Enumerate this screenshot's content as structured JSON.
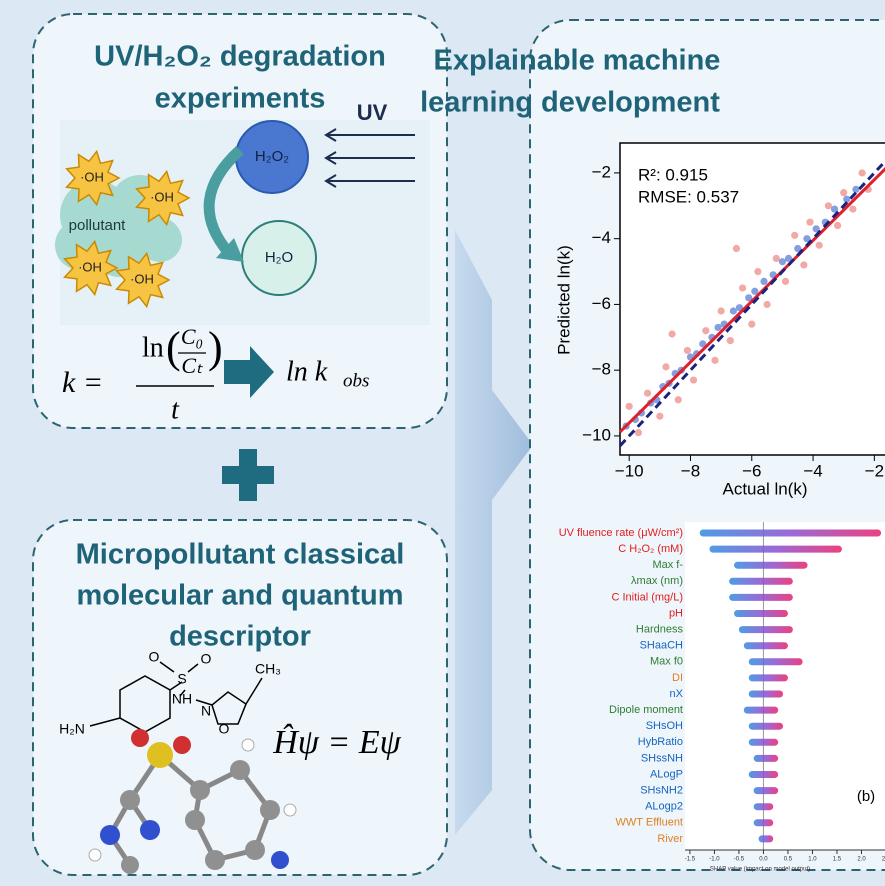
{
  "panel_1": {
    "title": [
      "UV/H₂O₂ degradation",
      "experiments"
    ],
    "illustration": {
      "uv": "UV",
      "h2o2": "H₂O₂",
      "h2o": "H₂O",
      "pollutant": "pollutant",
      "radicals": [
        "·OH",
        "·OH",
        "·OH",
        "·OH"
      ]
    },
    "equation": {
      "lhs": "k =",
      "ln": "ln",
      "numerator": "C₀",
      "denominator": "Cₜ",
      "time": "t",
      "result": "ln k",
      "result_sub": "obs"
    }
  },
  "panel_2": {
    "title": [
      "Micropollutant classical",
      "molecular and quantum",
      "descriptor"
    ],
    "molecule_labels": [
      "O",
      "S",
      "O",
      "NH",
      "N",
      "O",
      "CH₃",
      "H₂N"
    ],
    "equation": "Ĥψ = Eψ"
  },
  "panel_3": {
    "title": [
      "Explainable machine",
      "learning development"
    ]
  },
  "chart_data": [
    {
      "type": "scatter",
      "annotations": [
        "R²: 0.915",
        "RMSE: 0.537"
      ],
      "x_label": "Actual ln(k)",
      "y_label": "Predicted ln(k)",
      "xlim": [
        -10.3,
        -1.0
      ],
      "ylim": [
        -10.58,
        -1.09
      ],
      "xticks": [
        {
          "value": -10,
          "label": "−10"
        },
        {
          "value": -8,
          "label": "−8"
        },
        {
          "value": -6,
          "label": "−6"
        },
        {
          "value": -4,
          "label": "−4"
        },
        {
          "value": -2,
          "label": "−2"
        }
      ],
      "yticks": [
        {
          "value": -2,
          "label": "−2"
        },
        {
          "value": -4,
          "label": "−4"
        },
        {
          "value": -6,
          "label": "−6"
        },
        {
          "value": -8,
          "label": "−8"
        },
        {
          "value": -10,
          "label": "−10"
        }
      ],
      "series": [
        {
          "color": "#5b7fd6",
          "x": [
            -10.1,
            -9.8,
            -9.6,
            -9.3,
            -9.1,
            -8.9,
            -8.7,
            -8.5,
            -8.3,
            -8.0,
            -7.8,
            -7.6,
            -7.3,
            -7.1,
            -6.9,
            -6.6,
            -6.4,
            -6.1,
            -5.9,
            -5.6,
            -5.3,
            -5.0,
            -4.8,
            -4.5,
            -4.2,
            -3.9,
            -3.6,
            -3.3,
            -2.9,
            -2.6
          ],
          "y": [
            -9.7,
            -9.5,
            -9.3,
            -9.0,
            -8.9,
            -8.5,
            -8.4,
            -8.1,
            -8.0,
            -7.6,
            -7.5,
            -7.2,
            -7.0,
            -6.7,
            -6.6,
            -6.2,
            -6.1,
            -5.8,
            -5.6,
            -5.3,
            -5.1,
            -4.7,
            -4.6,
            -4.3,
            -4.0,
            -3.7,
            -3.5,
            -3.1,
            -2.8,
            -2.5
          ]
        },
        {
          "color": "#ec8c88",
          "x": [
            -10.0,
            -9.7,
            -9.4,
            -9.0,
            -8.8,
            -8.4,
            -8.1,
            -7.9,
            -7.5,
            -7.2,
            -7.0,
            -6.7,
            -6.3,
            -6.0,
            -5.8,
            -5.5,
            -5.2,
            -4.9,
            -4.6,
            -4.3,
            -4.1,
            -3.8,
            -3.5,
            -3.2,
            -3.0,
            -2.7,
            -2.4,
            -2.2,
            -8.6,
            -6.5
          ],
          "y": [
            -9.1,
            -9.9,
            -8.7,
            -9.4,
            -7.9,
            -8.9,
            -7.4,
            -8.3,
            -6.8,
            -7.7,
            -6.2,
            -7.1,
            -5.5,
            -6.6,
            -5.0,
            -6.0,
            -4.6,
            -5.3,
            -3.9,
            -4.8,
            -3.5,
            -4.2,
            -3.0,
            -3.6,
            -2.6,
            -3.1,
            -2.0,
            -2.5,
            -6.9,
            -4.3
          ]
        }
      ],
      "fit_line": {
        "color": "#e0202a",
        "x": [
          -10.3,
          -1.0
        ],
        "y": [
          -9.88,
          -1.28
        ]
      },
      "identity_line": {
        "color": "#1a237e",
        "x": [
          -10.3,
          -1.0
        ],
        "y": [
          -10.3,
          -1.0
        ]
      }
    },
    {
      "type": "beeswarm",
      "x_label": "SHAP value (impact on model output)",
      "annotation": "(b)",
      "xlim": [
        -1.6,
        2.5
      ],
      "xticks": [
        -1.5,
        {
          "value": -1,
          "label": "-1.0"
        },
        -0.5,
        {
          "value": 0,
          "label": "0.0"
        },
        0.5,
        {
          "value": 1,
          "label": "1.0"
        },
        1.5,
        {
          "value": 2,
          "label": "2.0"
        },
        2.5
      ],
      "features": [
        "UV fluence rate (μW/cm²)",
        "C H₂O₂ (mM)",
        "Max f-",
        "λmax (nm)",
        "C Initial (mg/L)",
        "pH",
        "Hardness",
        "SHaaCH",
        "Max f0",
        "DI",
        "nX",
        "Dipole moment",
        "SHsOH",
        "HybRatio",
        "SHssNH",
        "ALogP",
        "SHsNH2",
        "ALogp2",
        "WWT Effluent",
        "River"
      ],
      "feature_colors": [
        "#e02020",
        "#e02020",
        "#2e7d32",
        "#2e7d32",
        "#e02020",
        "#e02020",
        "#2e7d32",
        "#1565c0",
        "#2e7d32",
        "#e08020",
        "#1565c0",
        "#2e7d32",
        "#1565c0",
        "#1565c0",
        "#1565c0",
        "#1565c0",
        "#1565c0",
        "#1565c0",
        "#e08020",
        "#e08020"
      ],
      "min": [
        -1.3,
        -1.1,
        -0.6,
        -0.7,
        -0.7,
        -0.6,
        -0.5,
        -0.4,
        -0.3,
        -0.3,
        -0.3,
        -0.4,
        -0.3,
        -0.3,
        -0.2,
        -0.3,
        -0.2,
        -0.2,
        -0.2,
        -0.1
      ],
      "max": [
        2.4,
        1.6,
        0.9,
        0.6,
        0.6,
        0.5,
        0.6,
        0.5,
        0.8,
        0.5,
        0.4,
        0.3,
        0.4,
        0.3,
        0.3,
        0.3,
        0.3,
        0.2,
        0.2,
        0.2
      ]
    }
  ]
}
